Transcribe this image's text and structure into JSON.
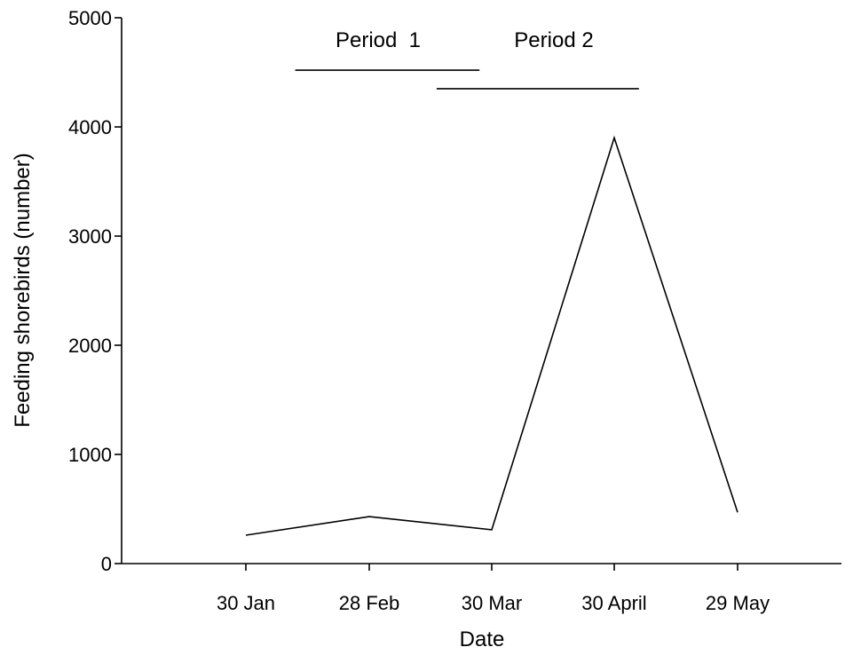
{
  "chart_data": {
    "type": "line",
    "title": "",
    "xlabel": "Date",
    "ylabel": "Feeding shorebirds (number)",
    "ylim": [
      0,
      5000
    ],
    "yticks": [
      0,
      1000,
      2000,
      3000,
      4000,
      5000
    ],
    "categories": [
      "30 Jan",
      "28 Feb",
      "30 Mar",
      "30 April",
      "29 May"
    ],
    "series": [
      {
        "values": [
          260,
          430,
          310,
          3900,
          470
        ]
      }
    ],
    "annotations": [
      {
        "label": "Period  1",
        "start_category": 0.4,
        "end_category": 1.9,
        "y": 4520
      },
      {
        "label": "Period 2",
        "start_category": 1.55,
        "end_category": 3.2,
        "y": 4350
      }
    ],
    "grid": false,
    "legend": "none"
  }
}
